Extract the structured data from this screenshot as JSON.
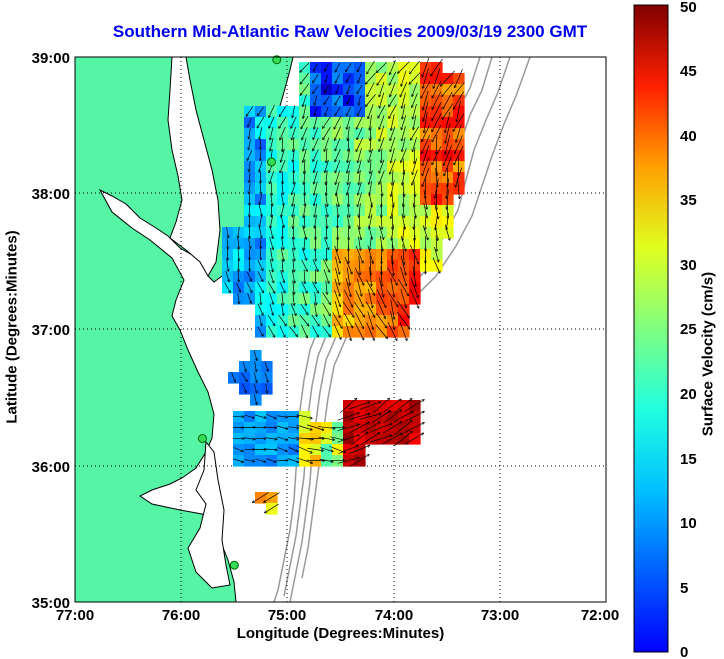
{
  "map": {
    "title": "Southern Mid-Atlantic Raw Velocities 2009/03/19 2300 GMT",
    "xlabel": "Longitude (Degrees:Minutes)",
    "ylabel": "Latitude (Degrees:Minutes)",
    "x_ticks": [
      "77:00",
      "76:00",
      "75:00",
      "74:00",
      "73:00",
      "72:00"
    ],
    "y_ticks": [
      "39:00",
      "38:00",
      "37:00",
      "36:00",
      "35:00"
    ],
    "x_range": [
      -77,
      -72
    ],
    "y_range": [
      35,
      39
    ],
    "grid": true,
    "land_color": "#55f5a5",
    "coast_color": "#000000",
    "bathymetry_color": "#9a9a9a"
  },
  "colorbar": {
    "label": "Surface Velocity (cm/s)",
    "ticks": [
      "0",
      "5",
      "10",
      "15",
      "20",
      "25",
      "30",
      "35",
      "40",
      "45",
      "50"
    ],
    "range": [
      0,
      50
    ],
    "colormap": "jet"
  },
  "stations": [
    {
      "lon": -75.1,
      "lat": 38.98
    },
    {
      "lon": -75.15,
      "lat": 38.23
    },
    {
      "lon": -75.8,
      "lat": 36.2
    },
    {
      "lon": -75.5,
      "lat": 35.27
    }
  ]
}
